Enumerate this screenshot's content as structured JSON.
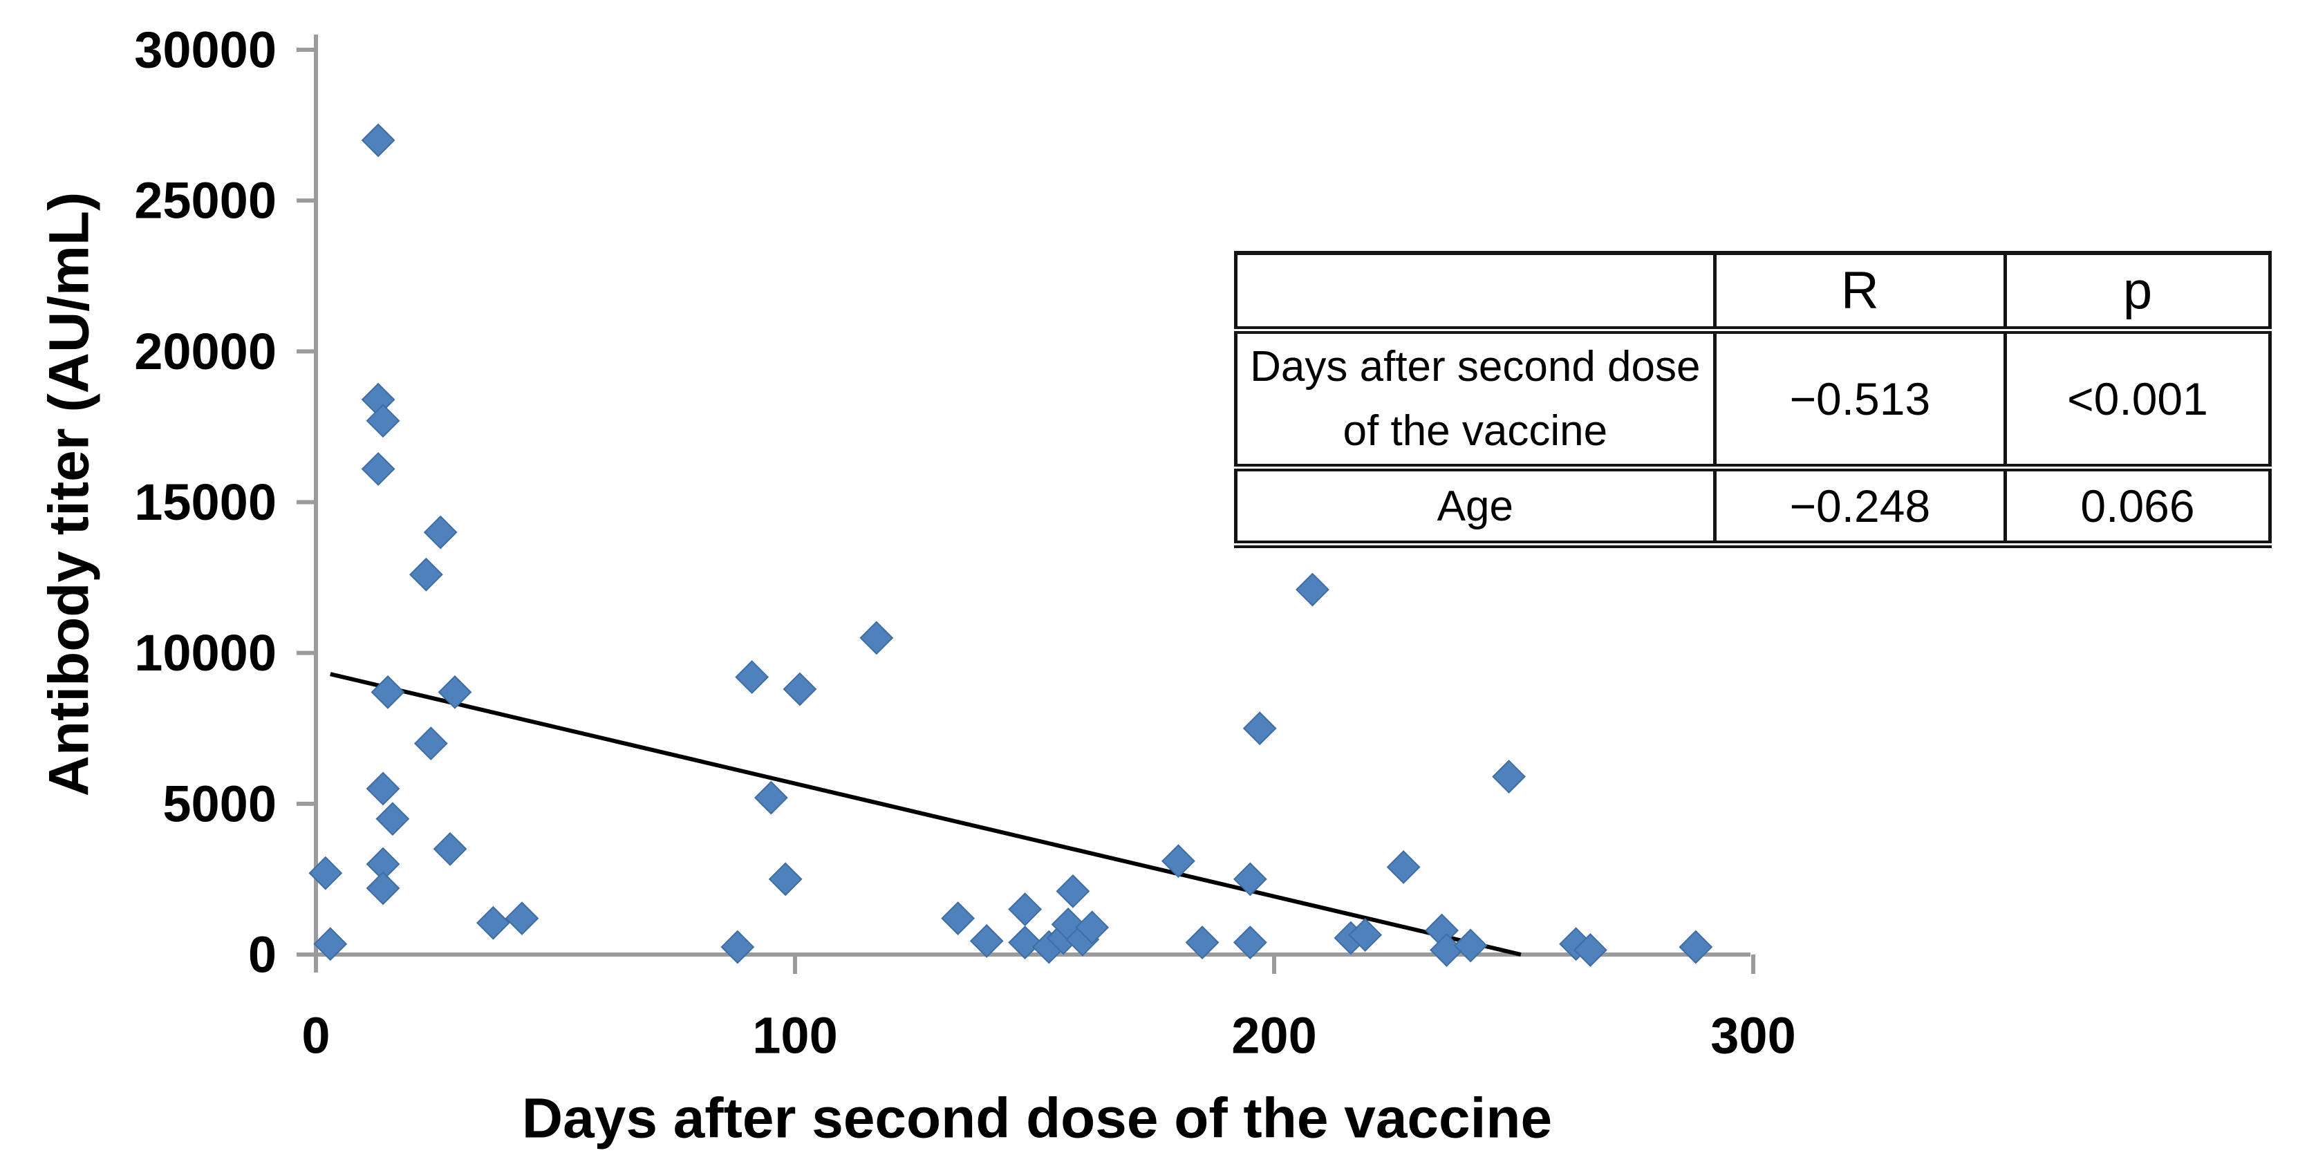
{
  "figure": {
    "background": "#ffffff"
  },
  "chart_data": {
    "type": "scatter",
    "title": "",
    "xlabel": "Days after second dose of the vaccine",
    "ylabel": "Antibody titer (AU/mL)",
    "xlim": [
      0,
      300
    ],
    "ylim": [
      0,
      30000
    ],
    "x_ticks": [
      0,
      100,
      200,
      300
    ],
    "y_ticks": [
      0,
      5000,
      10000,
      15000,
      20000,
      25000,
      30000
    ],
    "grid": false,
    "legend": "none",
    "marker": {
      "shape": "diamond",
      "color": "#4f81bd",
      "edge_color": "#3d6da3",
      "size": 46
    },
    "axis_color": "#9b9b9b",
    "text_color": "#000000",
    "points": [
      [
        2,
        2700
      ],
      [
        3,
        350
      ],
      [
        13,
        27000
      ],
      [
        13,
        18400
      ],
      [
        14,
        17700
      ],
      [
        13,
        16100
      ],
      [
        15,
        8700
      ],
      [
        14,
        5500
      ],
      [
        16,
        4500
      ],
      [
        14,
        3000
      ],
      [
        14,
        2200
      ],
      [
        23,
        12600
      ],
      [
        26,
        14000
      ],
      [
        24,
        7000
      ],
      [
        29,
        8700
      ],
      [
        28,
        3500
      ],
      [
        37,
        1050
      ],
      [
        43,
        1200
      ],
      [
        88,
        250
      ],
      [
        91,
        9200
      ],
      [
        95,
        5200
      ],
      [
        98,
        2500
      ],
      [
        101,
        8800
      ],
      [
        117,
        10500
      ],
      [
        134,
        1200
      ],
      [
        140,
        450
      ],
      [
        148,
        1500
      ],
      [
        148,
        400
      ],
      [
        153,
        250
      ],
      [
        156,
        550
      ],
      [
        157,
        1000
      ],
      [
        158,
        2100
      ],
      [
        160,
        500
      ],
      [
        162,
        900
      ],
      [
        180,
        3100
      ],
      [
        185,
        400
      ],
      [
        195,
        2500
      ],
      [
        195,
        400
      ],
      [
        197,
        7500
      ],
      [
        208,
        12100
      ],
      [
        216,
        550
      ],
      [
        219,
        650
      ],
      [
        227,
        2900
      ],
      [
        235,
        800
      ],
      [
        236,
        150
      ],
      [
        241,
        300
      ],
      [
        249,
        5900
      ],
      [
        263,
        350
      ],
      [
        266,
        150
      ],
      [
        288,
        250
      ]
    ],
    "trendline": {
      "x_start": 3,
      "y_start": 9300,
      "x_end": 251.5,
      "y_end": 0,
      "color": "#000000"
    }
  },
  "stats_table": {
    "col_headers": [
      "R",
      "p"
    ],
    "rows": [
      {
        "label": "Days after second dose of the vaccine",
        "R": "−0.513",
        "p": "<0.001"
      },
      {
        "label": "Age",
        "R": "−0.248",
        "p": "0.066"
      }
    ]
  }
}
